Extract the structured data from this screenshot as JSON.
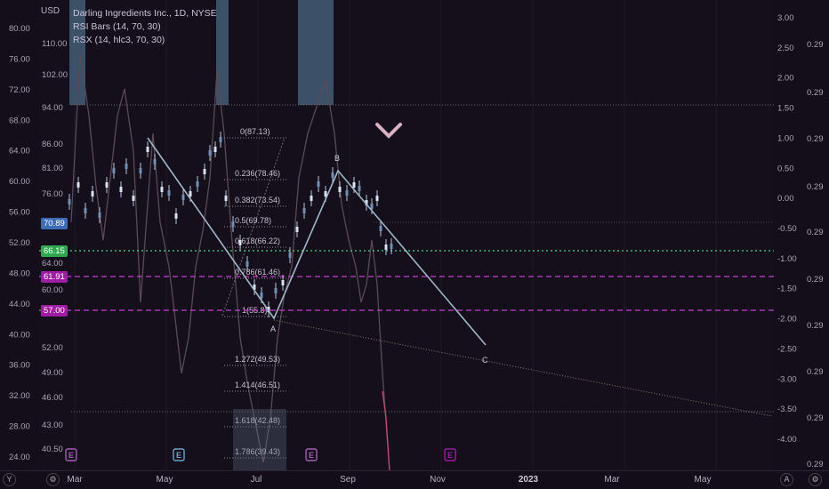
{
  "legend": {
    "symbol_title": "Darling Ingredients Inc., 1D, NYSE",
    "indicator1": "RSI Bars (14, 70, 30)",
    "indicator2": "RSX (14, hlc3, 70, 30)"
  },
  "axis_currency": "USD",
  "price_tags": [
    {
      "value": "70.89",
      "color": "#3d6bb5"
    },
    {
      "value": "66.15",
      "color": "#2fa84f"
    },
    {
      "value": "61.91",
      "color": "#a01ca3"
    },
    {
      "value": "57.00",
      "color": "#a01ca3"
    }
  ],
  "colors": {
    "background": "#150f1c",
    "fib_line": "#8a8a8a",
    "zigzag": "#9fb7c6",
    "green_line": "#3ddc84",
    "magenta_line": "#c43fd1",
    "candle": "#b8c7db",
    "rsx": "#5a4a55"
  },
  "chart_data": {
    "type": "candlestick",
    "title": "Darling Ingredients Inc., 1D, NYSE",
    "price_axis_ticks": [
      110.0,
      102.0,
      94.0,
      86.0,
      81.0,
      76.0,
      70.89,
      66.15,
      64.0,
      61.91,
      60.0,
      57.0,
      52.0,
      49.0,
      46.0,
      43.0,
      40.5
    ],
    "rsi_axis_ticks": [
      80.0,
      76.0,
      72.0,
      68.0,
      64.0,
      60.0,
      56.0,
      52.0,
      48.0,
      44.0,
      40.0,
      36.0,
      32.0,
      28.0,
      24.0
    ],
    "rsx_axis_ticks": [
      3.0,
      2.5,
      2.0,
      1.5,
      1.0,
      0.5,
      0.0,
      -0.5,
      -1.0,
      -1.5,
      -2.0,
      -2.5,
      -3.0,
      -3.5,
      -4.0
    ],
    "far_right_ticks": [
      "0.29",
      "0.29",
      "0.29",
      "0.29",
      "0.29",
      "0.29",
      "0.29",
      "0.29",
      "0.29",
      "0.29"
    ],
    "time_labels": [
      "Mar",
      "May",
      "Jul",
      "Sep",
      "Nov",
      "2023",
      "Mar",
      "May"
    ],
    "fib_levels": [
      {
        "label": "0(87.13)"
      },
      {
        "label": "0.236(78.46)"
      },
      {
        "label": "0.382(73.54)"
      },
      {
        "label": "0.5(69.78)"
      },
      {
        "label": "0.618(66.22)"
      },
      {
        "label": "0.786(61.46)"
      },
      {
        "label": "1(55.8)"
      },
      {
        "label": "1.272(49.53)"
      },
      {
        "label": "1.414(46.51)"
      },
      {
        "label": "1.618(42.48)"
      },
      {
        "label": "1.786(39.43)"
      }
    ],
    "pattern_points": [
      "A",
      "B",
      "C"
    ],
    "horizontal_lines": [
      66.15,
      61.91,
      57.0
    ],
    "earnings_markers": [
      "E",
      "E",
      "E",
      "E"
    ]
  }
}
